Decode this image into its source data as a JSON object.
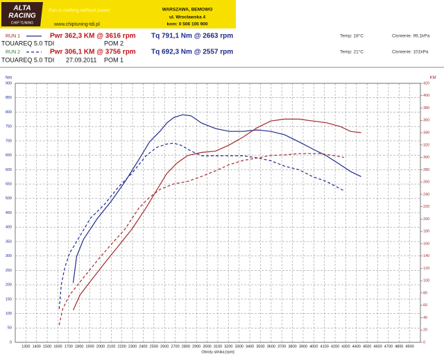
{
  "header": {
    "logo_top": "ALTA",
    "logo_mid": "RACING",
    "logo_sub": "CHIP TUNING",
    "slogan": "Fun is nothing without power",
    "website": "www.chiptuning-tdi.pl",
    "address_1": "WARSZAWA, BEMOWO",
    "address_2": "ul. Wrocławska 4",
    "address_3": "kom: 0 506 105 900"
  },
  "runs": [
    {
      "label": "RUN 1",
      "pwr": "Pwr 362,3 KM @ 3616 rpm",
      "tq": "Tq 791,1 Nm @ 2663 rpm",
      "temp": "Temp: 18°C",
      "pressure": "Cisnienie: 99,1kPa",
      "car": "TOUAREQ  5.0 TDI",
      "note": "POM 2"
    },
    {
      "label": "RUN 2",
      "pwr": "Pwr 306,1 KM @ 3756 rpm",
      "tq": "Tq 692,3 Nm @ 2557 rpm",
      "temp": "Temp: 21°C",
      "pressure": "Cisnienie: 101kPa",
      "car": "TOUAREQ  5.0 TDI",
      "date": "27.09.2011",
      "note": "POM 1"
    }
  ],
  "chart_data": {
    "type": "line",
    "x_label": "Obroty silnika [rpm]",
    "y_label": "Nm",
    "y2_label": "KM",
    "grid": true,
    "xlim": [
      1200,
      5000
    ],
    "xticks": [
      1300,
      1400,
      1500,
      1600,
      1700,
      1800,
      1900,
      2000,
      2100,
      2200,
      2300,
      2400,
      2500,
      2600,
      2700,
      2800,
      2900,
      3000,
      3100,
      3200,
      3300,
      3400,
      3500,
      3600,
      3700,
      3800,
      3900,
      4000,
      4100,
      4200,
      4300,
      4400,
      4500,
      4600,
      4700,
      4800,
      4900
    ],
    "ylim": [
      0,
      900
    ],
    "yticks": [
      0,
      50,
      100,
      150,
      200,
      250,
      300,
      350,
      400,
      450,
      500,
      550,
      600,
      650,
      700,
      750,
      800,
      850,
      900
    ],
    "y2lim": [
      0,
      420
    ],
    "y2ticks": [
      0,
      20,
      40,
      60,
      80,
      100,
      120,
      140,
      160,
      180,
      200,
      220,
      240,
      260,
      280,
      300,
      320,
      340,
      360,
      380,
      400,
      420
    ],
    "series": [
      {
        "color": "#1c2a8c",
        "dashed": false,
        "x": [
          1743,
          1775,
          1840,
          1971,
          2101,
          2231,
          2361,
          2459,
          2556,
          2621,
          2686,
          2771,
          2849,
          2947,
          3077,
          3207,
          3338,
          3468,
          3598,
          3728,
          3858,
          3989,
          4119,
          4249,
          4347,
          4444
        ],
        "values": [
          206,
          298,
          358,
          431,
          491,
          559,
          636,
          696,
          733,
          762,
          781,
          791,
          787,
          762,
          743,
          733,
          733,
          738,
          733,
          721,
          697,
          672,
          648,
          617,
          593,
          576
        ]
      },
      {
        "color": "#1c2a8c",
        "dashed": true,
        "x": [
          1612,
          1632,
          1665,
          1710,
          1808,
          1905,
          2036,
          2166,
          2296,
          2426,
          2524,
          2622,
          2687,
          2752,
          2849,
          2947,
          3077,
          3207,
          3338,
          3468,
          3598,
          3728,
          3858,
          3989,
          4119,
          4282
        ],
        "values": [
          116,
          201,
          261,
          310,
          370,
          431,
          479,
          539,
          588,
          648,
          677,
          689,
          692,
          685,
          665,
          648,
          648,
          648,
          648,
          641,
          631,
          612,
          600,
          576,
          559,
          527
        ]
      },
      {
        "color": "#a3282a",
        "dashed": false,
        "axis": "y2",
        "x": [
          1743,
          1808,
          1905,
          2036,
          2166,
          2296,
          2426,
          2524,
          2622,
          2719,
          2817,
          2947,
          3077,
          3207,
          3338,
          3468,
          3598,
          3728,
          3858,
          3989,
          4119,
          4249,
          4347,
          4444
        ],
        "values": [
          52,
          77,
          99,
          128,
          156,
          184,
          218,
          246,
          274,
          291,
          303,
          308,
          310,
          320,
          333,
          348,
          359,
          362,
          362,
          359,
          356,
          350,
          342,
          340
        ]
      },
      {
        "color": "#a3282a",
        "dashed": true,
        "axis": "y2",
        "x": [
          1612,
          1645,
          1710,
          1840,
          1971,
          2101,
          2231,
          2361,
          2459,
          2556,
          2687,
          2817,
          2947,
          3077,
          3207,
          3338,
          3468,
          3598,
          3728,
          3858,
          4054,
          4184,
          4282
        ],
        "values": [
          28,
          54,
          77,
          105,
          133,
          159,
          184,
          218,
          235,
          248,
          257,
          261,
          269,
          278,
          288,
          295,
          299,
          303,
          304,
          306,
          306,
          303,
          300
        ]
      }
    ]
  }
}
